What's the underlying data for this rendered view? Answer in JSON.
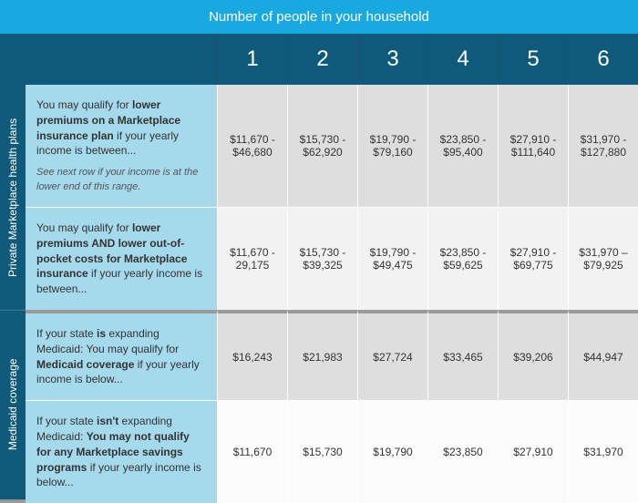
{
  "colors": {
    "top_header_bg": "#19a9e1",
    "num_header_bg": "#0f5a7a",
    "side_label_bg": "#0f5a7a",
    "desc_bg": "#a5d9ec",
    "cell_bg_light": "#dedede",
    "cell_bg_lighter": "#f2f2f2",
    "cell_bg_white": "#fcfcfc",
    "text_white": "#ffffff",
    "text_dark": "#333333"
  },
  "header": {
    "title": "Number of people in your household",
    "columns": [
      "1",
      "2",
      "3",
      "4",
      "5",
      "6"
    ]
  },
  "sections": [
    {
      "side_label": "Private Marketplace health plans",
      "rows": [
        {
          "desc_html": "You may qualify for <b>lower premiums on a Marketplace insurance plan</b> if your yearly income is between...",
          "note": "See next row if your income is at the lower end of this range.",
          "values": [
            "$11,670 - $46,680",
            "$15,730 - $62,920",
            "$19,790 - $79,160",
            "$23,850 - $95,400",
            "$27,910 - $111,640",
            "$31,970 - $127,880"
          ],
          "cell_bg": "#dedede"
        },
        {
          "desc_html": "You may qualify for <b>lower premiums AND lower out-of-pocket costs for Marketplace insurance</b> if your yearly income is between...",
          "values": [
            "$11,670 - 29,175",
            "$15,730 - $39,325",
            "$19,790 - $49,475",
            "$23,850 - $59,625",
            "$27,910 - $69,775",
            "$31,970 – $79,925"
          ],
          "cell_bg": "#f2f2f2"
        }
      ]
    },
    {
      "side_label": "Medicaid coverage",
      "rows": [
        {
          "desc_html": "If your state <b>is</b> expanding Medicaid: You may qualify for <b>Medicaid coverage</b> if your yearly income is below...",
          "values": [
            "$16,243",
            "$21,983",
            "$27,724",
            "$33,465",
            "$39,206",
            "$44,947"
          ],
          "cell_bg": "#dedede"
        },
        {
          "desc_html": "If your state <b>isn't</b> expanding Medicaid: <b>You may not qualify for any Marketplace savings programs</b> if your yearly income is below...",
          "values": [
            "$11,670",
            "$15,730",
            "$19,790",
            "$23,850",
            "$27,910",
            "$31,970"
          ],
          "cell_bg": "#fcfcfc"
        }
      ]
    }
  ]
}
